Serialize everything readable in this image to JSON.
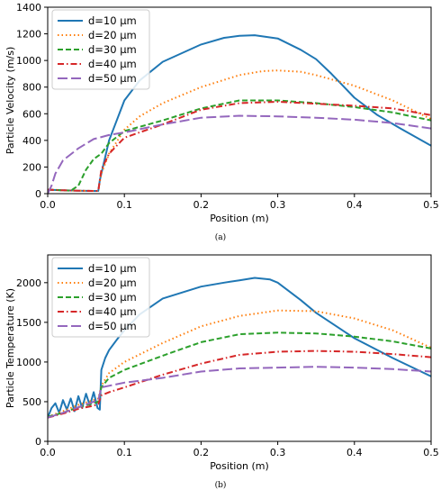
{
  "figure": {
    "panels": [
      {
        "caption": "(a)",
        "ylabel": "Particle Velocity (m/s)",
        "xlabel": "Position (m)"
      },
      {
        "caption": "(b)",
        "ylabel": "Particle Temperature (K)",
        "xlabel": "Position (m)"
      }
    ]
  },
  "chart_data": [
    {
      "type": "line",
      "title": "",
      "caption": "(a)",
      "xlabel": "Position (m)",
      "ylabel": "Particle Velocity (m/s)",
      "xlim": [
        0,
        0.5
      ],
      "ylim": [
        0,
        1400
      ],
      "xticks": [
        0.0,
        0.1,
        0.2,
        0.3,
        0.4,
        0.5
      ],
      "xtick_labels": [
        "0.0",
        "0.1",
        "0.2",
        "0.3",
        "0.4",
        "0.5"
      ],
      "yticks": [
        0,
        200,
        400,
        600,
        800,
        1000,
        1200,
        1400
      ],
      "ytick_labels": [
        "0",
        "200",
        "400",
        "600",
        "800",
        "1000",
        "1200",
        "1400"
      ],
      "legend_position": "top-left",
      "series": [
        {
          "name": "d=10 μm",
          "color": "#1f77b4",
          "dash": "solid",
          "x": [
            0,
            0.02,
            0.04,
            0.06,
            0.066,
            0.068,
            0.07,
            0.08,
            0.1,
            0.12,
            0.15,
            0.2,
            0.23,
            0.25,
            0.27,
            0.3,
            0.33,
            0.35,
            0.37,
            0.4,
            0.43,
            0.46,
            0.5
          ],
          "y": [
            30,
            25,
            22,
            20,
            20,
            100,
            150,
            400,
            700,
            850,
            990,
            1120,
            1170,
            1185,
            1190,
            1165,
            1080,
            1010,
            900,
            720,
            590,
            490,
            360
          ]
        },
        {
          "name": "d=20 μm",
          "color": "#ff7f0e",
          "dash": "dotted",
          "x": [
            0,
            0.02,
            0.04,
            0.06,
            0.066,
            0.068,
            0.07,
            0.08,
            0.1,
            0.12,
            0.15,
            0.2,
            0.25,
            0.28,
            0.3,
            0.33,
            0.35,
            0.4,
            0.45,
            0.5
          ],
          "y": [
            30,
            25,
            22,
            20,
            20,
            90,
            150,
            300,
            480,
            580,
            680,
            800,
            890,
            920,
            925,
            915,
            890,
            810,
            700,
            560
          ]
        },
        {
          "name": "d=30 μm",
          "color": "#2ca02c",
          "dash": "dashed",
          "x": [
            0,
            0.01,
            0.02,
            0.03,
            0.04,
            0.05,
            0.06,
            0.07,
            0.08,
            0.1,
            0.15,
            0.2,
            0.25,
            0.3,
            0.35,
            0.4,
            0.45,
            0.5
          ],
          "y": [
            30,
            28,
            25,
            22,
            60,
            180,
            260,
            300,
            380,
            470,
            550,
            640,
            700,
            700,
            680,
            650,
            610,
            550
          ]
        },
        {
          "name": "d=40 μm",
          "color": "#d62728",
          "dash": "dashdot",
          "x": [
            0,
            0.02,
            0.04,
            0.06,
            0.066,
            0.068,
            0.07,
            0.08,
            0.1,
            0.15,
            0.2,
            0.25,
            0.3,
            0.35,
            0.4,
            0.45,
            0.5
          ],
          "y": [
            30,
            25,
            22,
            20,
            20,
            100,
            180,
            300,
            420,
            520,
            630,
            680,
            690,
            675,
            660,
            640,
            590
          ]
        },
        {
          "name": "d=50 μm",
          "color": "#9467bd",
          "dash": "longdash",
          "x": [
            0,
            0.005,
            0.01,
            0.02,
            0.04,
            0.06,
            0.08,
            0.1,
            0.15,
            0.2,
            0.25,
            0.3,
            0.35,
            0.4,
            0.45,
            0.5
          ],
          "y": [
            0,
            60,
            150,
            250,
            340,
            410,
            440,
            460,
            520,
            570,
            585,
            580,
            570,
            555,
            530,
            490
          ]
        }
      ]
    },
    {
      "type": "line",
      "title": "",
      "caption": "(b)",
      "xlabel": "Position (m)",
      "ylabel": "Particle Temperature (K)",
      "xlim": [
        0,
        0.5
      ],
      "ylim": [
        0,
        2350
      ],
      "xticks": [
        0.0,
        0.1,
        0.2,
        0.3,
        0.4,
        0.5
      ],
      "xtick_labels": [
        "0.0",
        "0.1",
        "0.2",
        "0.3",
        "0.4",
        "0.5"
      ],
      "yticks": [
        0,
        500,
        1000,
        1500,
        2000
      ],
      "ytick_labels": [
        "0",
        "500",
        "1000",
        "1500",
        "2000"
      ],
      "legend_position": "top-left",
      "series": [
        {
          "name": "d=10 μm",
          "color": "#1f77b4",
          "dash": "solid",
          "x": [
            0,
            0.005,
            0.01,
            0.015,
            0.02,
            0.025,
            0.03,
            0.035,
            0.04,
            0.045,
            0.05,
            0.055,
            0.06,
            0.065,
            0.068,
            0.07,
            0.075,
            0.08,
            0.09,
            0.1,
            0.12,
            0.15,
            0.2,
            0.23,
            0.25,
            0.27,
            0.29,
            0.3,
            0.33,
            0.35,
            0.4,
            0.45,
            0.5
          ],
          "y": [
            300,
            420,
            480,
            360,
            520,
            400,
            540,
            380,
            570,
            420,
            600,
            450,
            620,
            420,
            400,
            900,
            1050,
            1150,
            1280,
            1400,
            1600,
            1800,
            1950,
            2000,
            2030,
            2060,
            2040,
            2000,
            1780,
            1620,
            1300,
            1050,
            820
          ]
        },
        {
          "name": "d=20 μm",
          "color": "#ff7f0e",
          "dash": "dotted",
          "x": [
            0,
            0.02,
            0.04,
            0.06,
            0.066,
            0.07,
            0.08,
            0.1,
            0.15,
            0.2,
            0.25,
            0.3,
            0.35,
            0.4,
            0.45,
            0.5
          ],
          "y": [
            310,
            380,
            460,
            520,
            540,
            700,
            860,
            1000,
            1240,
            1450,
            1580,
            1650,
            1640,
            1550,
            1400,
            1180
          ]
        },
        {
          "name": "d=30 μm",
          "color": "#2ca02c",
          "dash": "dashed",
          "x": [
            0,
            0.02,
            0.04,
            0.06,
            0.066,
            0.07,
            0.08,
            0.1,
            0.15,
            0.2,
            0.25,
            0.3,
            0.35,
            0.4,
            0.45,
            0.5
          ],
          "y": [
            310,
            360,
            430,
            480,
            500,
            680,
            800,
            900,
            1080,
            1250,
            1350,
            1370,
            1360,
            1320,
            1260,
            1170
          ]
        },
        {
          "name": "d=40 μm",
          "color": "#d62728",
          "dash": "dashdot",
          "x": [
            0,
            0.02,
            0.04,
            0.06,
            0.066,
            0.07,
            0.08,
            0.1,
            0.15,
            0.2,
            0.25,
            0.3,
            0.35,
            0.4,
            0.45,
            0.5
          ],
          "y": [
            300,
            350,
            410,
            450,
            470,
            580,
            620,
            680,
            840,
            980,
            1090,
            1130,
            1140,
            1130,
            1100,
            1060
          ]
        },
        {
          "name": "d=50 μm",
          "color": "#9467bd",
          "dash": "longdash",
          "x": [
            0,
            0.02,
            0.04,
            0.06,
            0.066,
            0.07,
            0.08,
            0.1,
            0.15,
            0.2,
            0.25,
            0.3,
            0.35,
            0.4,
            0.45,
            0.5
          ],
          "y": [
            300,
            360,
            430,
            500,
            520,
            680,
            700,
            740,
            800,
            880,
            920,
            930,
            940,
            930,
            910,
            880
          ]
        }
      ]
    }
  ]
}
